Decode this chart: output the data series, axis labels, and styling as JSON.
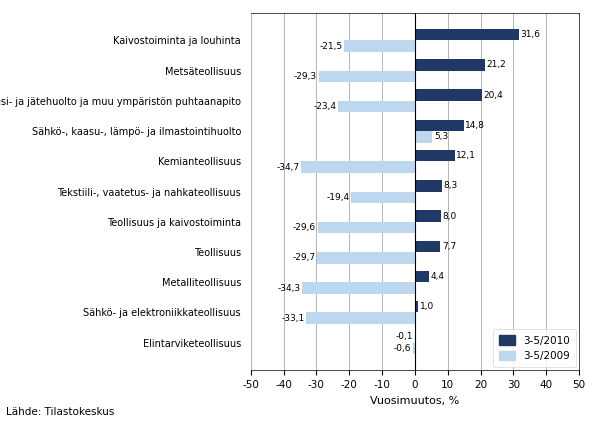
{
  "categories": [
    "Kaivostoiminta ja louhinta",
    "Metsäteollisuus",
    "Vesi- ja jätehuolto ja muu ympäristön puhtaanapito",
    "Sähkö-, kaasu-, lämpö- ja ilmastointihuolto",
    "Kemianteollisuus",
    "Tekstiili-, vaatetus- ja nahkateollisuus",
    "Teollisuus ja kaivostoiminta",
    "Teollisuus",
    "Metalliteollisuus",
    "Sähkö- ja elektroniikkateollisuus",
    "Elintarviketeollisuus"
  ],
  "values_2010": [
    31.6,
    21.2,
    20.4,
    14.8,
    12.1,
    8.3,
    8.0,
    7.7,
    4.4,
    1.0,
    -0.1
  ],
  "values_2009": [
    -21.5,
    -29.3,
    -23.4,
    5.3,
    -34.7,
    -19.4,
    -29.6,
    -29.7,
    -34.3,
    -33.1,
    -0.6
  ],
  "color_2010": "#1F3864",
  "color_2009": "#BDD7EE",
  "xlabel": "Vuosimuutos, %",
  "legend_2010": "3-5/2010",
  "legend_2009": "3-5/2009",
  "footer": "Lähde: Tilastokeskus",
  "xlim": [
    -50,
    50
  ],
  "xticks": [
    -50,
    -40,
    -30,
    -20,
    -10,
    0,
    10,
    20,
    30,
    40,
    50
  ]
}
